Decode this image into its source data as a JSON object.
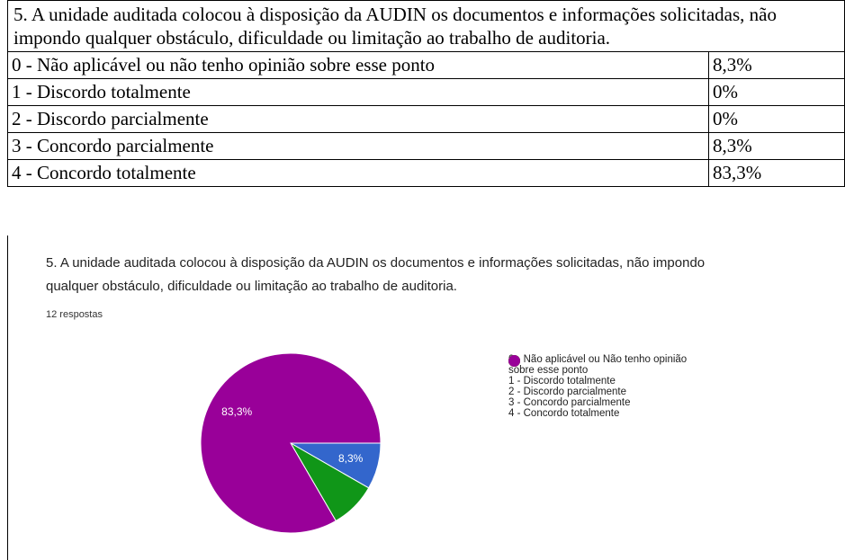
{
  "table": {
    "title": "5. A unidade auditada colocou à disposição da AUDIN os documentos e informações solicitadas, não impondo qualquer obstáculo, dificuldade ou limitação ao trabalho de auditoria.",
    "rows": [
      [
        "0 - Não aplicável ou não tenho opinião sobre esse ponto",
        "8,3%"
      ],
      [
        "1 - Discordo totalmente",
        "0%"
      ],
      [
        "2 - Discordo parcialmente",
        "0%"
      ],
      [
        "3 - Concordo parcialmente",
        "8,3%"
      ],
      [
        "4 - Concordo totalmente",
        "83,3%"
      ]
    ]
  },
  "chart_data": {
    "type": "pie",
    "title": "5. A unidade auditada colocou à disposição da AUDIN os documentos e informações solicitadas, não impondo qualquer obstáculo, dificuldade ou limitação ao trabalho de auditoria.",
    "subtitle": "12 respostas",
    "categories": [
      "0 - Não aplicável ou Não tenho opinião sobre esse ponto",
      "1 - Discordo totalmente",
      "2 - Discordo parcialmente",
      "3 - Concordo parcialmente",
      "4 - Concordo totalmente"
    ],
    "values": [
      8.3,
      0,
      0,
      8.3,
      83.3
    ],
    "value_labels": [
      "8,3%",
      null,
      null,
      null,
      "83,3%"
    ],
    "colors": [
      "#3366cc",
      "#dc3912",
      "#ff9900",
      "#109618",
      "#990099"
    ]
  }
}
